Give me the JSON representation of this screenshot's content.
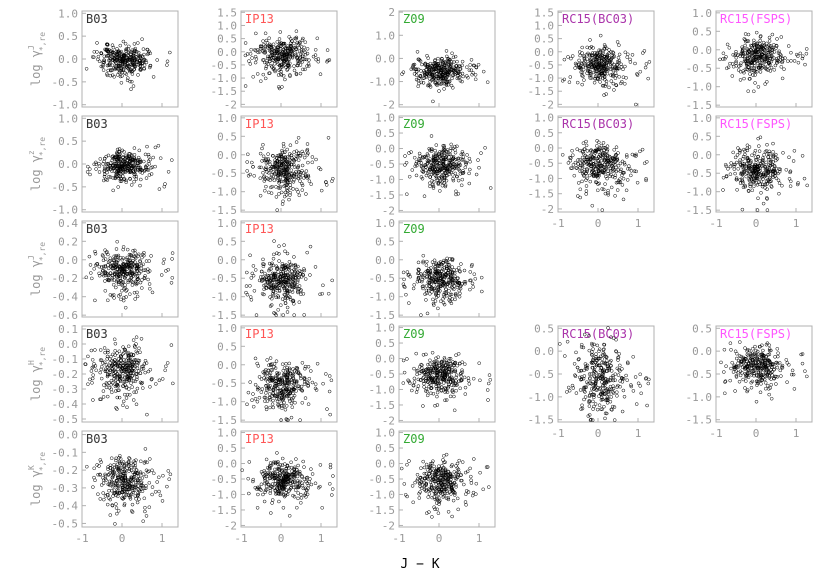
{
  "figure": {
    "x_axis_label": "J − K",
    "x_ticks": [
      -1,
      0,
      1
    ],
    "row_ylabels": [
      {
        "text": "log γ",
        "sup": "J",
        "sub": "*,re"
      },
      {
        "text": "log γ",
        "sup": "z",
        "sub": "*,re"
      },
      {
        "text": "log γ",
        "sup": "J",
        "sub": "*,re"
      },
      {
        "text": "log γ",
        "sup": "H",
        "sub": "*,re"
      },
      {
        "text": "log γ",
        "sup": "K",
        "sub": "*,re"
      }
    ]
  },
  "colors": {
    "B03": "#333333",
    "IP13": "#ff5555",
    "Z09": "#33aa33",
    "RC15(BC03)": "#aa33aa",
    "RC15(FSPS)": "#ff55ff",
    "axis": "#999999",
    "points": "#000000"
  },
  "chart_data": {
    "type": "scatter",
    "xlabel": "J − K",
    "xlim": [
      -1,
      1.4
    ],
    "x_ticks": [
      -1,
      0,
      1
    ],
    "panels": [
      {
        "model": "B03",
        "row": 0,
        "col": 0,
        "ylim": [
          -1.05,
          1.05
        ],
        "y_ticks": [
          1.0,
          0.5,
          0.0,
          -0.5,
          -1.0
        ],
        "center": 0.0,
        "spread": 0.15
      },
      {
        "model": "IP13",
        "row": 0,
        "col": 1,
        "ylim": [
          -2.1,
          1.55
        ],
        "y_ticks": [
          1.5,
          1.0,
          0.5,
          0.0,
          -0.5,
          -1.0,
          -1.5,
          -2.0
        ],
        "center": -0.05,
        "spread": 0.35
      },
      {
        "model": "Z09",
        "row": 0,
        "col": 2,
        "ylim": [
          -2.1,
          2.05
        ],
        "y_ticks": [
          2,
          1,
          0,
          -1,
          -2
        ],
        "center": -0.5,
        "spread": 0.3
      },
      {
        "model": "RC15(BC03)",
        "row": 0,
        "col": 3,
        "ylim": [
          -2.1,
          1.55
        ],
        "y_ticks": [
          1.5,
          1.0,
          0.5,
          0.0,
          -0.5,
          -1.0,
          -1.5,
          -2.0
        ],
        "center": -0.4,
        "spread": 0.35
      },
      {
        "model": "RC15(FSPS)",
        "row": 0,
        "col": 4,
        "ylim": [
          -1.55,
          1.05
        ],
        "y_ticks": [
          1.0,
          0.5,
          0.0,
          -0.5,
          -1.0,
          -1.5
        ],
        "center": -0.15,
        "spread": 0.25
      },
      {
        "model": "B03",
        "row": 1,
        "col": 0,
        "ylim": [
          -1.05,
          1.05
        ],
        "y_ticks": [
          1.0,
          0.5,
          0.0,
          -0.5,
          -1.0
        ],
        "center": 0.0,
        "spread": 0.15
      },
      {
        "model": "IP13",
        "row": 1,
        "col": 1,
        "ylim": [
          -1.55,
          1.05
        ],
        "y_ticks": [
          1.0,
          0.5,
          0.0,
          -0.5,
          -1.0,
          -1.5
        ],
        "center": -0.35,
        "spread": 0.3
      },
      {
        "model": "Z09",
        "row": 1,
        "col": 2,
        "ylim": [
          -2.05,
          1.05
        ],
        "y_ticks": [
          1.0,
          0.5,
          0.0,
          -0.5,
          -1.0,
          -1.5,
          -2.0
        ],
        "center": -0.5,
        "spread": 0.3
      },
      {
        "model": "RC15(BC03)",
        "row": 1,
        "col": 3,
        "ylim": [
          -2.1,
          1.05
        ],
        "y_ticks": [
          1.0,
          0.5,
          0.0,
          -0.5,
          -1.0,
          -1.5,
          -2.0
        ],
        "center": -0.5,
        "spread": 0.35
      },
      {
        "model": "RC15(FSPS)",
        "row": 1,
        "col": 4,
        "ylim": [
          -1.55,
          1.05
        ],
        "y_ticks": [
          1.0,
          0.5,
          0.0,
          -0.5,
          -1.0,
          -1.5
        ],
        "center": -0.35,
        "spread": 0.25
      },
      {
        "model": "B03",
        "row": 2,
        "col": 0,
        "ylim": [
          -0.62,
          0.42
        ],
        "y_ticks": [
          0.4,
          0.2,
          0.0,
          -0.2,
          -0.4,
          -0.6
        ],
        "center": -0.1,
        "spread": 0.1
      },
      {
        "model": "IP13",
        "row": 2,
        "col": 1,
        "ylim": [
          -1.55,
          1.05
        ],
        "y_ticks": [
          1.0,
          0.5,
          0.0,
          -0.5,
          -1.0,
          -1.5
        ],
        "center": -0.5,
        "spread": 0.3
      },
      {
        "model": "Z09",
        "row": 2,
        "col": 2,
        "ylim": [
          -1.55,
          1.05
        ],
        "y_ticks": [
          1.0,
          0.5,
          0.0,
          -0.5,
          -1.0,
          -1.5
        ],
        "center": -0.5,
        "spread": 0.25
      },
      {
        "model": "B03",
        "row": 3,
        "col": 0,
        "ylim": [
          -0.52,
          0.12
        ],
        "y_ticks": [
          0.1,
          0.0,
          -0.1,
          -0.2,
          -0.3,
          -0.4,
          -0.5
        ],
        "center": -0.15,
        "spread": 0.08
      },
      {
        "model": "IP13",
        "row": 3,
        "col": 1,
        "ylim": [
          -1.55,
          1.05
        ],
        "y_ticks": [
          1.0,
          0.5,
          0.0,
          -0.5,
          -1.0,
          -1.5
        ],
        "center": -0.5,
        "spread": 0.3
      },
      {
        "model": "Z09",
        "row": 3,
        "col": 2,
        "ylim": [
          -2.05,
          1.05
        ],
        "y_ticks": [
          1.0,
          0.5,
          0.0,
          -0.5,
          -1.0,
          -1.5,
          -2.0
        ],
        "center": -0.5,
        "spread": 0.3
      },
      {
        "model": "RC15(BC03)",
        "row": 3,
        "col": 3,
        "ylim": [
          -1.55,
          0.55
        ],
        "y_ticks": [
          0.5,
          0.0,
          -0.5,
          -1.0,
          -1.5
        ],
        "center": -0.5,
        "spread": 0.35
      },
      {
        "model": "RC15(FSPS)",
        "row": 3,
        "col": 4,
        "ylim": [
          -1.55,
          0.55
        ],
        "y_ticks": [
          0.5,
          0.0,
          -0.5,
          -1.0,
          -1.5
        ],
        "center": -0.3,
        "spread": 0.2
      },
      {
        "model": "B03",
        "row": 4,
        "col": 0,
        "ylim": [
          -0.52,
          0.02
        ],
        "y_ticks": [
          0.0,
          -0.1,
          -0.2,
          -0.3,
          -0.4,
          -0.5
        ],
        "center": -0.25,
        "spread": 0.06
      },
      {
        "model": "IP13",
        "row": 4,
        "col": 1,
        "ylim": [
          -2.05,
          1.05
        ],
        "y_ticks": [
          1.0,
          0.5,
          0.0,
          -0.5,
          -1.0,
          -1.5,
          -2.0
        ],
        "center": -0.5,
        "spread": 0.3
      },
      {
        "model": "Z09",
        "row": 4,
        "col": 2,
        "ylim": [
          -2.05,
          1.05
        ],
        "y_ticks": [
          1.0,
          0.5,
          0.0,
          -0.5,
          -1.0,
          -1.5,
          -2.0
        ],
        "center": -0.5,
        "spread": 0.3
      }
    ]
  }
}
